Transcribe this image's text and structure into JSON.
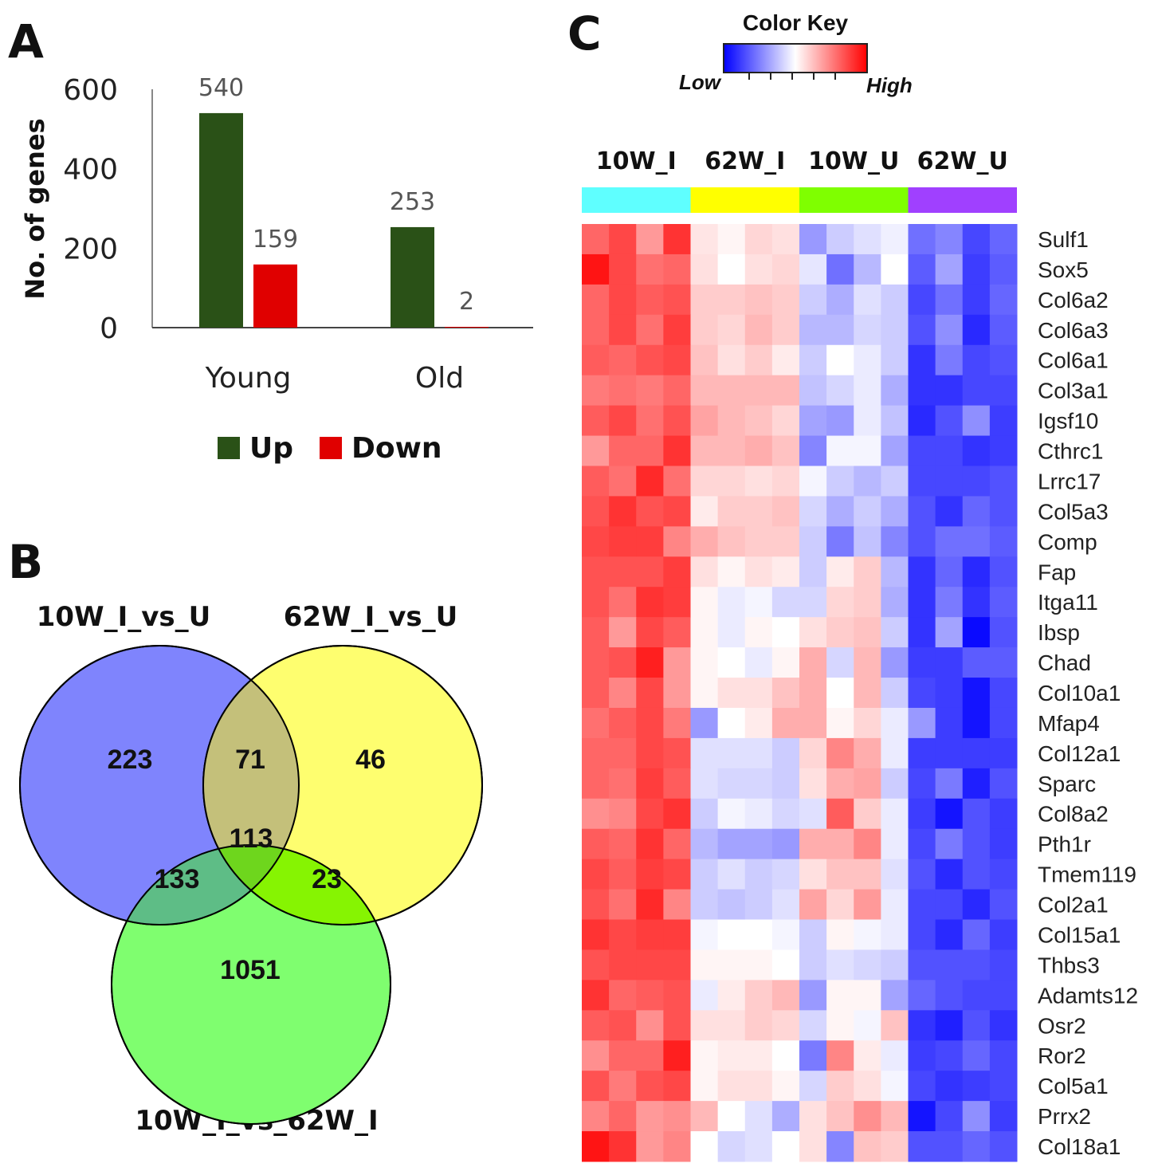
{
  "panels": {
    "a": "A",
    "b": "B",
    "c": "C"
  },
  "chart_data": [
    {
      "type": "bar",
      "categories": [
        "Young",
        "Old"
      ],
      "series": [
        {
          "name": "Up",
          "color": "#2a5117",
          "values": [
            540,
            253
          ]
        },
        {
          "name": "Down",
          "color": "#e00000",
          "values": [
            159,
            2
          ]
        }
      ],
      "ylabel": "No. of genes",
      "xlabel": "",
      "ylim": [
        0,
        600
      ],
      "yticks": [
        0,
        200,
        400,
        600
      ],
      "data_labels": [
        "540",
        "159",
        "253",
        "2"
      ],
      "legend": "bottom"
    },
    {
      "type": "venn",
      "sets": [
        {
          "name": "10W_I_vs_U",
          "color": "#7f84fd"
        },
        {
          "name": "62W_I_vs_U",
          "color": "#fefe6f"
        },
        {
          "name": "10W_I_vs_62W_I",
          "color": "#7ffe6f"
        }
      ],
      "regions": {
        "a_only": 223,
        "b_only": 46,
        "c_only": 1051,
        "ab": 71,
        "ac": 133,
        "bc": 23,
        "abc": 113
      }
    },
    {
      "type": "heatmap",
      "color_key": {
        "title": "Color Key",
        "low": "Low",
        "high": "High",
        "colors": [
          "#0000ff",
          "#ffffff",
          "#ff0000"
        ]
      },
      "groups": [
        {
          "name": "10W_I",
          "color": "#5fffff"
        },
        {
          "name": "62W_I",
          "color": "#ffff00"
        },
        {
          "name": "10W_U",
          "color": "#7fff00"
        },
        {
          "name": "62W_U",
          "color": "#a040ff"
        }
      ],
      "genes": [
        "Sulf1",
        "Sox5",
        "Col6a2",
        "Col6a3",
        "Col6a1",
        "Col3a1",
        "Igsf10",
        "Cthrc1",
        "Lrrc17",
        "Col5a3",
        "Comp",
        "Fap",
        "Itga11",
        "Ibsp",
        "Chad",
        "Col10a1",
        "Mfap4",
        "Col12a1",
        "Sparc",
        "Col8a2",
        "Pth1r",
        "Tmem119",
        "Col2a1",
        "Col15a1",
        "Thbs3",
        "Adamts12",
        "Osr2",
        "Ror2",
        "Col5a1",
        "Prrx2",
        "Col18a1"
      ],
      "values": [
        [
          0.8,
          0.86,
          0.7,
          0.9,
          0.55,
          0.52,
          0.58,
          0.56,
          0.3,
          0.4,
          0.44,
          0.47,
          0.22,
          0.26,
          0.14,
          0.2
        ],
        [
          0.96,
          0.86,
          0.78,
          0.8,
          0.56,
          0.5,
          0.56,
          0.58,
          0.45,
          0.22,
          0.36,
          0.5,
          0.18,
          0.32,
          0.12,
          0.18
        ],
        [
          0.8,
          0.86,
          0.82,
          0.84,
          0.6,
          0.6,
          0.62,
          0.6,
          0.4,
          0.34,
          0.44,
          0.4,
          0.14,
          0.22,
          0.12,
          0.2
        ],
        [
          0.8,
          0.86,
          0.78,
          0.88,
          0.6,
          0.58,
          0.64,
          0.6,
          0.36,
          0.36,
          0.42,
          0.4,
          0.16,
          0.28,
          0.08,
          0.18
        ],
        [
          0.82,
          0.8,
          0.84,
          0.86,
          0.62,
          0.56,
          0.6,
          0.54,
          0.4,
          0.5,
          0.46,
          0.4,
          0.1,
          0.24,
          0.14,
          0.16
        ],
        [
          0.76,
          0.78,
          0.76,
          0.8,
          0.64,
          0.64,
          0.64,
          0.64,
          0.38,
          0.42,
          0.46,
          0.34,
          0.1,
          0.1,
          0.14,
          0.14
        ],
        [
          0.82,
          0.86,
          0.78,
          0.84,
          0.68,
          0.64,
          0.62,
          0.58,
          0.32,
          0.3,
          0.46,
          0.38,
          0.08,
          0.16,
          0.28,
          0.12
        ],
        [
          0.7,
          0.8,
          0.8,
          0.9,
          0.64,
          0.64,
          0.66,
          0.62,
          0.26,
          0.48,
          0.48,
          0.32,
          0.14,
          0.14,
          0.1,
          0.12
        ],
        [
          0.82,
          0.78,
          0.92,
          0.78,
          0.58,
          0.58,
          0.56,
          0.58,
          0.48,
          0.4,
          0.36,
          0.4,
          0.14,
          0.14,
          0.14,
          0.16
        ],
        [
          0.84,
          0.9,
          0.84,
          0.86,
          0.54,
          0.6,
          0.6,
          0.62,
          0.42,
          0.34,
          0.4,
          0.34,
          0.16,
          0.1,
          0.2,
          0.16
        ],
        [
          0.86,
          0.88,
          0.88,
          0.74,
          0.66,
          0.62,
          0.6,
          0.6,
          0.4,
          0.24,
          0.38,
          0.26,
          0.16,
          0.22,
          0.22,
          0.18
        ],
        [
          0.84,
          0.84,
          0.84,
          0.88,
          0.56,
          0.52,
          0.56,
          0.54,
          0.4,
          0.54,
          0.6,
          0.36,
          0.1,
          0.2,
          0.08,
          0.16
        ],
        [
          0.84,
          0.78,
          0.9,
          0.88,
          0.52,
          0.46,
          0.48,
          0.42,
          0.42,
          0.58,
          0.6,
          0.34,
          0.1,
          0.24,
          0.1,
          0.18
        ],
        [
          0.82,
          0.7,
          0.86,
          0.82,
          0.52,
          0.46,
          0.52,
          0.5,
          0.56,
          0.6,
          0.62,
          0.4,
          0.1,
          0.32,
          0.02,
          0.16
        ],
        [
          0.82,
          0.84,
          0.94,
          0.7,
          0.52,
          0.5,
          0.46,
          0.52,
          0.66,
          0.42,
          0.64,
          0.3,
          0.12,
          0.12,
          0.18,
          0.18
        ],
        [
          0.82,
          0.74,
          0.86,
          0.7,
          0.52,
          0.56,
          0.56,
          0.62,
          0.66,
          0.5,
          0.64,
          0.4,
          0.14,
          0.12,
          0.04,
          0.14
        ],
        [
          0.78,
          0.82,
          0.86,
          0.76,
          0.3,
          0.5,
          0.54,
          0.66,
          0.66,
          0.52,
          0.58,
          0.46,
          0.3,
          0.12,
          0.04,
          0.14
        ],
        [
          0.8,
          0.8,
          0.86,
          0.84,
          0.44,
          0.44,
          0.44,
          0.4,
          0.58,
          0.74,
          0.66,
          0.46,
          0.12,
          0.12,
          0.12,
          0.12
        ],
        [
          0.8,
          0.78,
          0.88,
          0.82,
          0.44,
          0.42,
          0.42,
          0.4,
          0.56,
          0.66,
          0.68,
          0.4,
          0.14,
          0.24,
          0.06,
          0.16
        ],
        [
          0.72,
          0.74,
          0.86,
          0.9,
          0.4,
          0.48,
          0.46,
          0.42,
          0.44,
          0.82,
          0.6,
          0.46,
          0.12,
          0.04,
          0.16,
          0.12
        ],
        [
          0.82,
          0.8,
          0.9,
          0.8,
          0.36,
          0.32,
          0.32,
          0.3,
          0.66,
          0.66,
          0.74,
          0.46,
          0.14,
          0.24,
          0.16,
          0.12
        ],
        [
          0.86,
          0.82,
          0.88,
          0.86,
          0.4,
          0.44,
          0.4,
          0.42,
          0.56,
          0.62,
          0.62,
          0.44,
          0.16,
          0.08,
          0.16,
          0.14
        ],
        [
          0.84,
          0.78,
          0.92,
          0.74,
          0.4,
          0.38,
          0.4,
          0.44,
          0.68,
          0.58,
          0.7,
          0.46,
          0.14,
          0.14,
          0.08,
          0.16
        ],
        [
          0.9,
          0.86,
          0.88,
          0.88,
          0.48,
          0.5,
          0.5,
          0.48,
          0.4,
          0.52,
          0.48,
          0.46,
          0.14,
          0.08,
          0.2,
          0.12
        ],
        [
          0.84,
          0.86,
          0.86,
          0.86,
          0.52,
          0.52,
          0.52,
          0.5,
          0.4,
          0.44,
          0.42,
          0.4,
          0.16,
          0.16,
          0.16,
          0.14
        ],
        [
          0.9,
          0.8,
          0.82,
          0.84,
          0.46,
          0.54,
          0.6,
          0.64,
          0.3,
          0.52,
          0.52,
          0.32,
          0.2,
          0.16,
          0.14,
          0.14
        ],
        [
          0.82,
          0.84,
          0.72,
          0.84,
          0.56,
          0.56,
          0.6,
          0.58,
          0.42,
          0.52,
          0.48,
          0.62,
          0.1,
          0.06,
          0.16,
          0.1
        ],
        [
          0.72,
          0.8,
          0.8,
          0.94,
          0.52,
          0.54,
          0.54,
          0.5,
          0.24,
          0.74,
          0.54,
          0.46,
          0.12,
          0.14,
          0.2,
          0.14
        ],
        [
          0.84,
          0.76,
          0.84,
          0.86,
          0.52,
          0.56,
          0.56,
          0.52,
          0.42,
          0.6,
          0.56,
          0.48,
          0.14,
          0.1,
          0.12,
          0.14
        ],
        [
          0.74,
          0.8,
          0.7,
          0.72,
          0.64,
          0.5,
          0.44,
          0.34,
          0.56,
          0.62,
          0.72,
          0.64,
          0.04,
          0.14,
          0.28,
          0.12
        ],
        [
          0.96,
          0.9,
          0.7,
          0.74,
          0.5,
          0.42,
          0.44,
          0.5,
          0.56,
          0.26,
          0.62,
          0.6,
          0.16,
          0.16,
          0.2,
          0.16
        ]
      ]
    }
  ]
}
